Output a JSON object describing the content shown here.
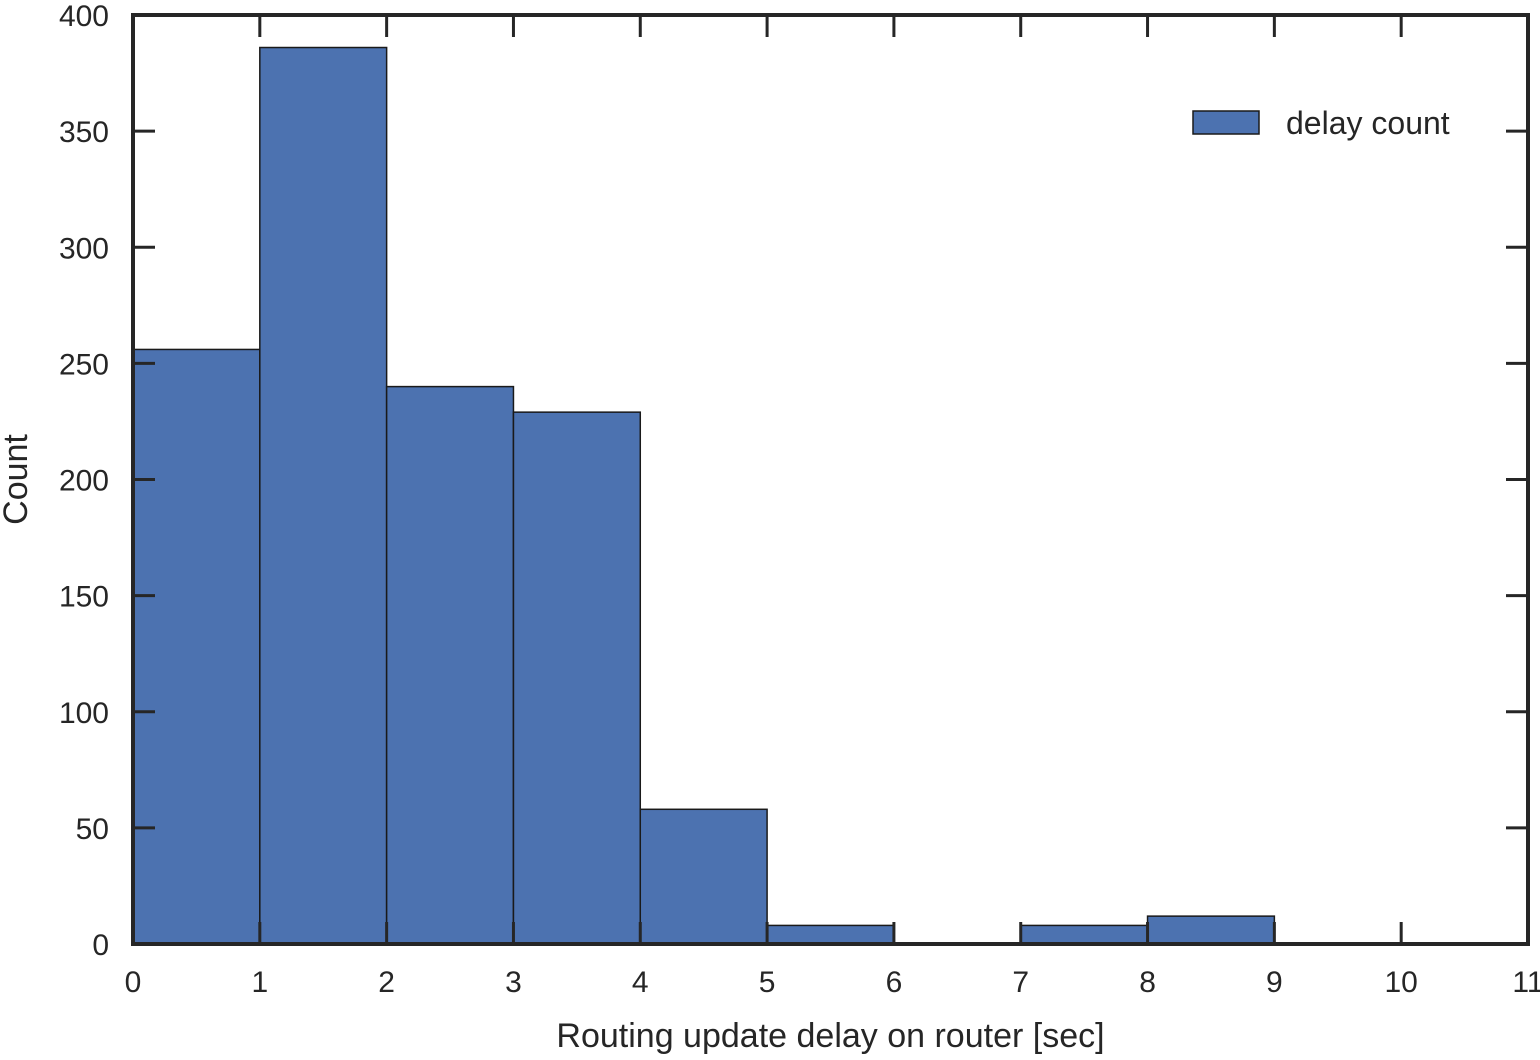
{
  "chart_data": {
    "type": "bar",
    "subtype": "histogram",
    "xlabel": "Routing update delay on router [sec]",
    "ylabel": "Count",
    "xlim": [
      0,
      11
    ],
    "ylim": [
      0,
      400
    ],
    "xticks": [
      "0",
      "1",
      "2",
      "3",
      "4",
      "5",
      "6",
      "7",
      "8",
      "9",
      "10",
      "11"
    ],
    "yticks": [
      "0",
      "50",
      "100",
      "150",
      "200",
      "250",
      "300",
      "350",
      "400"
    ],
    "bins": [
      {
        "x0": 0,
        "x1": 1,
        "count": 256
      },
      {
        "x0": 1,
        "x1": 2,
        "count": 386
      },
      {
        "x0": 2,
        "x1": 3,
        "count": 240
      },
      {
        "x0": 3,
        "x1": 4,
        "count": 229
      },
      {
        "x0": 4,
        "x1": 5,
        "count": 58
      },
      {
        "x0": 5,
        "x1": 6,
        "count": 8
      },
      {
        "x0": 6,
        "x1": 7,
        "count": 0
      },
      {
        "x0": 7,
        "x1": 8,
        "count": 8
      },
      {
        "x0": 8,
        "x1": 9,
        "count": 12
      },
      {
        "x0": 9,
        "x1": 10,
        "count": 0
      },
      {
        "x0": 10,
        "x1": 11,
        "count": 0
      }
    ],
    "series": [
      {
        "name": "delay count",
        "color": "#4c72b0"
      }
    ],
    "legend": {
      "position": "top-right"
    },
    "grid": false
  }
}
